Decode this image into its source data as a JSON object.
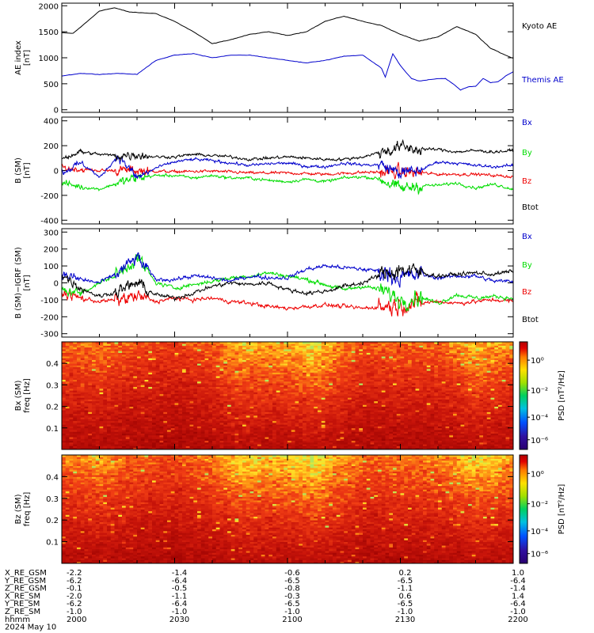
{
  "figure": {
    "footer_rows": [
      {
        "label": "X_RE_GSM",
        "values": [
          "-2.2",
          "-1.4",
          "-0.6",
          "0.2",
          "1.0"
        ]
      },
      {
        "label": "Y_RE_GSM",
        "values": [
          "-6.2",
          "-6.4",
          "-6.5",
          "-6.5",
          "-6.4"
        ]
      },
      {
        "label": "Z_RE_GSM",
        "values": [
          "-0.1",
          "-0.5",
          "-0.8",
          "-1.1",
          "-1.4"
        ]
      },
      {
        "label": "X_RE_SM",
        "values": [
          "-2.0",
          "-1.1",
          "-0.3",
          "0.6",
          "1.4"
        ]
      },
      {
        "label": "Y_RE_SM",
        "values": [
          "-6.2",
          "-6.4",
          "-6.5",
          "-6.5",
          "-6.4"
        ]
      },
      {
        "label": "Z_RE_SM",
        "values": [
          "-1.0",
          "-1.0",
          "-1.0",
          "-1.0",
          "-1.0"
        ]
      },
      {
        "label": "hhmm",
        "values": [
          "2000",
          "2030",
          "2100",
          "2130",
          "2200"
        ]
      }
    ],
    "date_label": "2024 May 10"
  },
  "chart_data": [
    {
      "type": "line",
      "ylabel": "AE index\n[nT]",
      "xlim": [
        "20:00",
        "22:00"
      ],
      "ylim": [
        -50,
        2050
      ],
      "yticks": [
        0,
        500,
        1000,
        1500,
        2000
      ],
      "series": [
        {
          "name": "Kyoto AE",
          "color": "#000000",
          "x": [
            0,
            3,
            6,
            10,
            14,
            18,
            20,
            25,
            30,
            35,
            40,
            45,
            50,
            55,
            60,
            65,
            70,
            75,
            80,
            85,
            90,
            95,
            100,
            105,
            110,
            114,
            118,
            120
          ],
          "values": [
            1480,
            1470,
            1650,
            1900,
            1960,
            1880,
            1870,
            1850,
            1700,
            1500,
            1270,
            1350,
            1450,
            1500,
            1430,
            1500,
            1700,
            1800,
            1700,
            1620,
            1450,
            1320,
            1400,
            1600,
            1450,
            1180,
            1050,
            990
          ]
        },
        {
          "name": "Themis AE",
          "color": "#0000cc",
          "x": [
            0,
            5,
            10,
            15,
            20,
            25,
            30,
            35,
            40,
            45,
            50,
            55,
            60,
            65,
            70,
            75,
            80,
            85,
            86,
            88,
            90,
            92,
            93,
            95,
            98,
            100,
            102,
            104,
            106,
            108,
            110,
            112,
            114,
            116,
            118,
            120
          ],
          "values": [
            650,
            700,
            680,
            700,
            680,
            950,
            1050,
            1080,
            1000,
            1050,
            1050,
            1000,
            950,
            900,
            950,
            1030,
            1050,
            800,
            630,
            1080,
            850,
            680,
            600,
            550,
            580,
            600,
            600,
            500,
            380,
            440,
            450,
            600,
            520,
            540,
            650,
            730
          ]
        }
      ]
    },
    {
      "type": "line",
      "ylabel": "B (SM)\n[nT]",
      "xlim": [
        "20:00",
        "22:00"
      ],
      "ylim": [
        -430,
        430
      ],
      "yticks": [
        -400,
        -200,
        0,
        200,
        400
      ],
      "series": [
        {
          "name": "Bx",
          "color": "#0000cc",
          "x": [
            0,
            5,
            8,
            10,
            15,
            20,
            25,
            30,
            35,
            40,
            45,
            50,
            55,
            60,
            65,
            70,
            75,
            80,
            85,
            90,
            95,
            100,
            105,
            110,
            115,
            120
          ],
          "values": [
            -20,
            60,
            0,
            -60,
            120,
            -60,
            20,
            70,
            90,
            80,
            60,
            40,
            55,
            60,
            35,
            30,
            60,
            45,
            45,
            -20,
            0,
            70,
            60,
            40,
            30,
            40
          ]
        },
        {
          "name": "By",
          "color": "#00dd00",
          "x": [
            0,
            5,
            10,
            15,
            20,
            25,
            30,
            35,
            40,
            45,
            50,
            55,
            60,
            65,
            70,
            75,
            80,
            85,
            90,
            95,
            100,
            105,
            110,
            115,
            120
          ],
          "values": [
            -100,
            -130,
            -150,
            -100,
            -60,
            -40,
            -40,
            -60,
            -40,
            -60,
            -60,
            -80,
            -90,
            -70,
            -90,
            -60,
            -50,
            -70,
            -150,
            -120,
            -120,
            -100,
            -140,
            -110,
            -150
          ]
        },
        {
          "name": "Bz",
          "color": "#ee0000",
          "x": [
            0,
            10,
            20,
            30,
            40,
            50,
            60,
            70,
            80,
            90,
            100,
            110,
            120
          ],
          "values": [
            20,
            0,
            0,
            -10,
            -5,
            -20,
            -20,
            -30,
            -15,
            -10,
            -30,
            -30,
            -50
          ]
        },
        {
          "name": "Btot",
          "color": "#000000",
          "x": [
            0,
            5,
            10,
            15,
            20,
            25,
            30,
            35,
            40,
            45,
            50,
            55,
            60,
            65,
            70,
            75,
            80,
            85,
            90,
            95,
            100,
            105,
            110,
            115,
            120
          ],
          "values": [
            100,
            150,
            130,
            120,
            130,
            110,
            110,
            130,
            120,
            110,
            90,
            100,
            110,
            100,
            90,
            90,
            110,
            150,
            190,
            170,
            170,
            150,
            160,
            150,
            160
          ]
        }
      ]
    },
    {
      "type": "line",
      "ylabel": "B (SM)−IGRF (SM)\n[nT]",
      "xlim": [
        "20:00",
        "22:00"
      ],
      "ylim": [
        -320,
        320
      ],
      "yticks": [
        -300,
        -200,
        -100,
        0,
        100,
        200,
        300
      ],
      "series": [
        {
          "name": "Bx",
          "color": "#0000cc",
          "x": [
            0,
            5,
            10,
            15,
            20,
            25,
            30,
            35,
            40,
            45,
            50,
            55,
            60,
            65,
            70,
            75,
            80,
            85,
            90,
            95,
            100,
            105,
            110,
            115,
            120
          ],
          "values": [
            50,
            20,
            0,
            60,
            150,
            20,
            20,
            40,
            30,
            10,
            40,
            30,
            30,
            80,
            100,
            90,
            80,
            70,
            30,
            50,
            30,
            40,
            40,
            10,
            10
          ]
        },
        {
          "name": "By",
          "color": "#00dd00",
          "x": [
            0,
            5,
            10,
            15,
            20,
            25,
            30,
            35,
            40,
            45,
            50,
            55,
            60,
            65,
            70,
            75,
            80,
            85,
            90,
            95,
            100,
            105,
            110,
            115,
            120
          ],
          "values": [
            -40,
            -60,
            0,
            50,
            150,
            0,
            -30,
            -10,
            10,
            30,
            40,
            60,
            40,
            20,
            -10,
            -40,
            -20,
            -40,
            -100,
            -80,
            -120,
            -70,
            -90,
            -80,
            -90
          ]
        },
        {
          "name": "Bz",
          "color": "#ee0000",
          "x": [
            0,
            5,
            10,
            15,
            20,
            25,
            30,
            35,
            40,
            45,
            50,
            55,
            60,
            65,
            70,
            75,
            80,
            85,
            90,
            95,
            100,
            105,
            110,
            115,
            120
          ],
          "values": [
            -60,
            -90,
            -110,
            -100,
            -80,
            -110,
            -90,
            -100,
            -90,
            -110,
            -120,
            -140,
            -150,
            -140,
            -130,
            -140,
            -150,
            -140,
            -130,
            -120,
            -110,
            -120,
            -110,
            -100,
            -110
          ]
        },
        {
          "name": "Btot",
          "color": "#000000",
          "x": [
            0,
            5,
            10,
            15,
            20,
            25,
            30,
            35,
            40,
            45,
            50,
            55,
            60,
            65,
            70,
            75,
            80,
            85,
            90,
            95,
            100,
            105,
            110,
            115,
            120
          ],
          "values": [
            50,
            -30,
            -80,
            -50,
            0,
            -70,
            -90,
            -60,
            -20,
            0,
            -10,
            0,
            -40,
            -60,
            -50,
            -20,
            0,
            50,
            80,
            60,
            40,
            50,
            60,
            50,
            70
          ]
        }
      ]
    },
    {
      "type": "heatmap",
      "ylabel": "Bx (SM)\nfreq   [Hz]",
      "yticks": [
        "0.1",
        "0.2",
        "0.3",
        "0.4"
      ],
      "ylim": [
        0,
        0.5
      ],
      "colorbar_label": "PSD  [nT²/Hz]",
      "colorbar_ticks": [
        "10⁰",
        "10⁻²",
        "10⁻⁴",
        "10⁻⁶"
      ]
    },
    {
      "type": "heatmap",
      "ylabel": "Bz (SM)\nfreq   [Hz]",
      "yticks": [
        "0.1",
        "0.2",
        "0.3",
        "0.4"
      ],
      "ylim": [
        0,
        0.5
      ],
      "colorbar_label": "PSD  [nT²/Hz]",
      "colorbar_ticks": [
        "10⁰",
        "10⁻²",
        "10⁻⁴",
        "10⁻⁶"
      ]
    }
  ]
}
